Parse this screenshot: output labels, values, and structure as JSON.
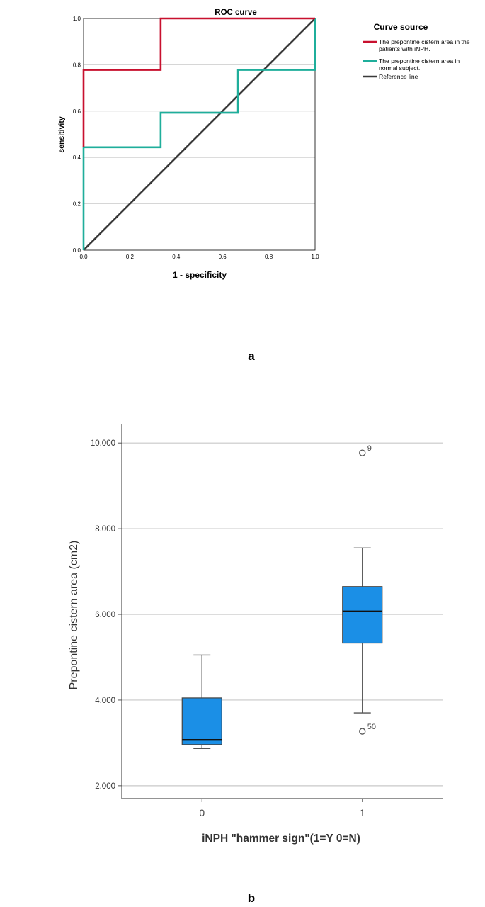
{
  "panels": {
    "a_label": "a",
    "b_label": "b"
  },
  "chart_data": [
    {
      "type": "line",
      "title": "ROC curve",
      "xlabel": "1 - specificity",
      "ylabel": "sensitivity",
      "xlim": [
        0,
        1
      ],
      "ylim": [
        0,
        1
      ],
      "xticks": [
        "0.0",
        "0.2",
        "0.4",
        "0.6",
        "0.8",
        "1.0"
      ],
      "yticks": [
        "0.0",
        "0.2",
        "0.4",
        "0.6",
        "0.8",
        "1.0"
      ],
      "grid": "horizontal",
      "legend": {
        "title": "Curve source",
        "position": "right"
      },
      "series": [
        {
          "name": "The prepontine cistern area in the patients with iNPH.",
          "color": "#c8102e",
          "step": true,
          "points": [
            [
              0,
              0.444
            ],
            [
              0,
              0.778
            ],
            [
              0.333,
              0.778
            ],
            [
              0.333,
              1.0
            ],
            [
              1.0,
              1.0
            ]
          ]
        },
        {
          "name": "The prepontine cistern area in normal subject.",
          "color": "#1fae9b",
          "step": true,
          "points": [
            [
              0,
              0
            ],
            [
              0,
              0.444
            ],
            [
              0.333,
              0.444
            ],
            [
              0.333,
              0.593
            ],
            [
              0.667,
              0.593
            ],
            [
              0.667,
              0.778
            ],
            [
              1.0,
              0.778
            ],
            [
              1.0,
              1.0
            ]
          ]
        },
        {
          "name": "Reference line",
          "color": "#3a3a3a",
          "step": false,
          "points": [
            [
              0,
              0
            ],
            [
              1,
              1
            ]
          ]
        }
      ]
    },
    {
      "type": "box",
      "title": "",
      "xlabel": "iNPH \"hammer sign\"(1=Y 0=N)",
      "ylabel": "Prepontine cistern area (cm2)",
      "ylim": [
        1.7,
        10.45
      ],
      "yticks": [
        2,
        4,
        6,
        8,
        10
      ],
      "ytick_labels": [
        "2.000",
        "4.000",
        "6.000",
        "8.000",
        "10.000"
      ],
      "grid": "horizontal",
      "box_color": "#1b8fe6",
      "categories": [
        "0",
        "1"
      ],
      "boxes": [
        {
          "category": "0",
          "min": 2.87,
          "q1": 2.96,
          "median": 3.07,
          "q3": 4.05,
          "max": 5.05,
          "outliers": []
        },
        {
          "category": "1",
          "min": 3.7,
          "q1": 5.33,
          "median": 6.07,
          "q3": 6.65,
          "max": 7.55,
          "outliers": [
            {
              "value": 9.77,
              "label": "9"
            },
            {
              "value": 3.27,
              "label": "50"
            }
          ]
        }
      ]
    }
  ]
}
